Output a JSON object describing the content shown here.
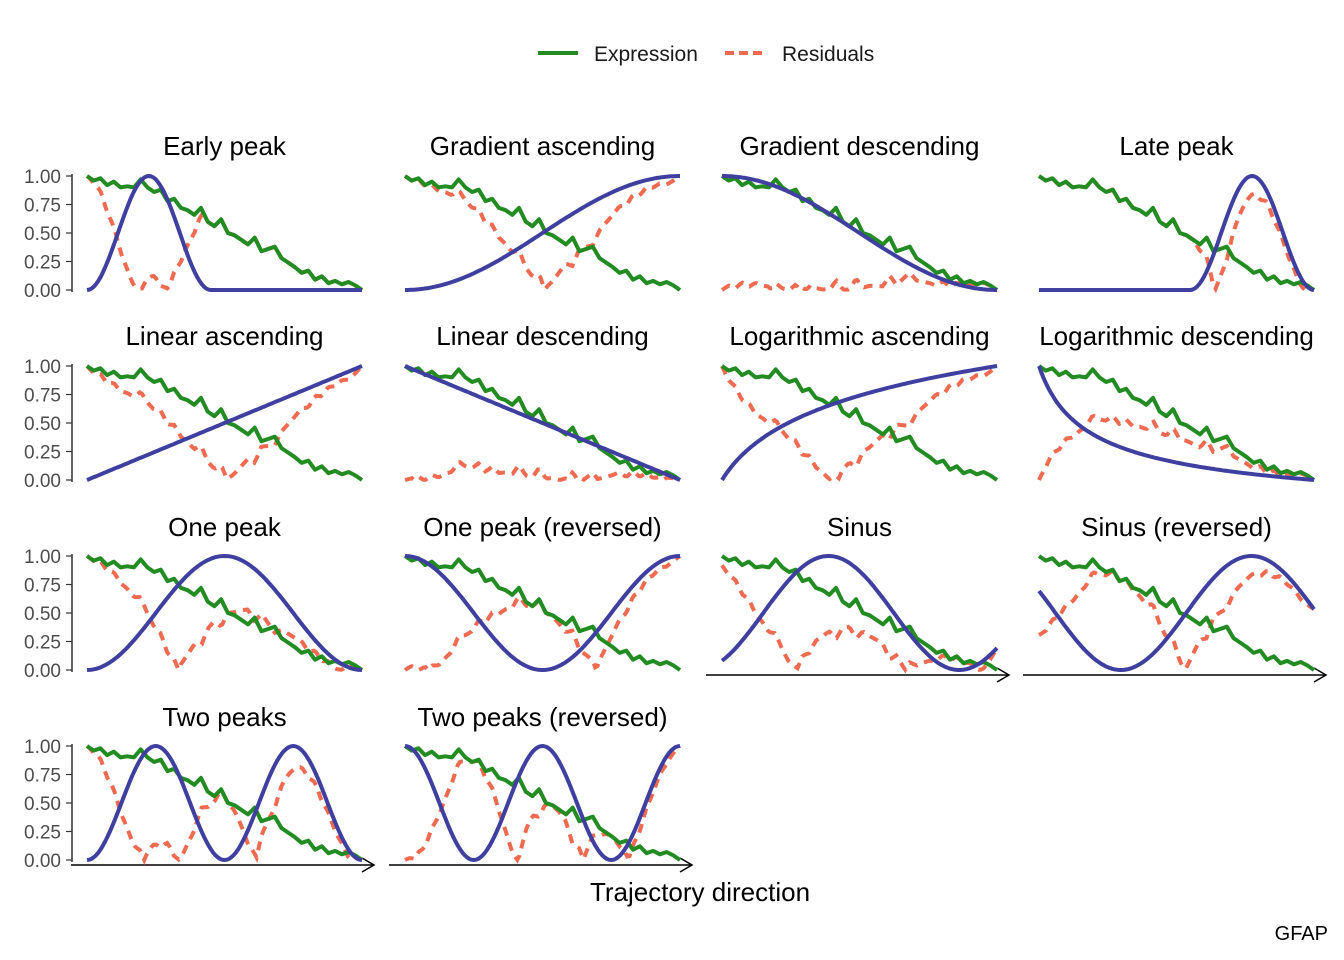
{
  "chart_data": {
    "type": "line",
    "layout": "facet-grid-4-columns",
    "legend": {
      "position": "top",
      "entries": [
        {
          "name": "Expression",
          "color": "#228B22",
          "style": "solid"
        },
        {
          "name": "Residuals",
          "color": "#EE6A50",
          "style": "dashed"
        }
      ]
    },
    "pattern_color": "#3F3FA0",
    "xlabel": "Trajectory direction",
    "caption": "GFAP",
    "ylim": [
      0,
      1
    ],
    "y_ticks": [
      "0.00",
      "0.25",
      "0.50",
      "0.75",
      "1.00"
    ],
    "expression": [
      1.0,
      0.96,
      0.98,
      0.92,
      0.95,
      0.9,
      0.91,
      0.9,
      0.97,
      0.9,
      0.86,
      0.88,
      0.78,
      0.8,
      0.72,
      0.7,
      0.66,
      0.72,
      0.6,
      0.56,
      0.62,
      0.5,
      0.48,
      0.44,
      0.4,
      0.46,
      0.34,
      0.36,
      0.38,
      0.28,
      0.24,
      0.2,
      0.15,
      0.17,
      0.09,
      0.12,
      0.06,
      0.08,
      0.05,
      0.07,
      0.04,
      0.0
    ],
    "panels": [
      {
        "title": "Early peak",
        "pattern": "early_peak"
      },
      {
        "title": "Gradient ascending",
        "pattern": "gradient_asc"
      },
      {
        "title": "Gradient descending",
        "pattern": "gradient_desc"
      },
      {
        "title": "Late peak",
        "pattern": "late_peak"
      },
      {
        "title": "Linear ascending",
        "pattern": "linear_asc"
      },
      {
        "title": "Linear descending",
        "pattern": "linear_desc"
      },
      {
        "title": "Logarithmic ascending",
        "pattern": "log_asc"
      },
      {
        "title": "Logarithmic descending",
        "pattern": "log_desc"
      },
      {
        "title": "One peak",
        "pattern": "one_peak"
      },
      {
        "title": "One peak (reversed)",
        "pattern": "one_peak_rev"
      },
      {
        "title": "Sinus",
        "pattern": "sinus"
      },
      {
        "title": "Sinus (reversed)",
        "pattern": "sinus_rev"
      },
      {
        "title": "Two peaks",
        "pattern": "two_peaks"
      },
      {
        "title": "Two peaks (reversed)",
        "pattern": "two_peaks_rev"
      }
    ]
  }
}
